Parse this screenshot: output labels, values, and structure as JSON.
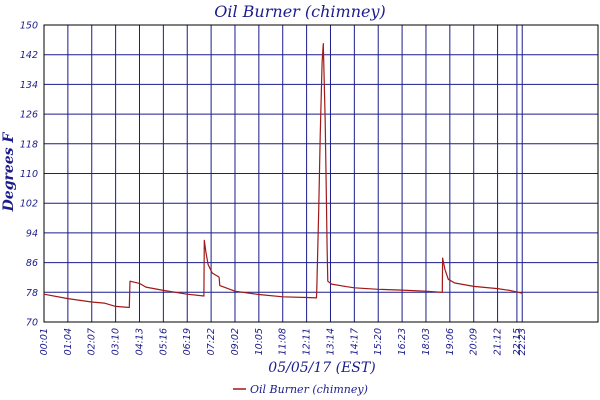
{
  "chart_data": {
    "type": "line",
    "title": "Oil Burner (chimney)",
    "xlabel": "05/05/17 (EST)",
    "ylabel": "Degrees F",
    "ylim": [
      70,
      150
    ],
    "y_ticks": [
      70,
      78,
      86,
      94,
      102,
      110,
      118,
      126,
      134,
      142,
      150
    ],
    "x_range_minutes": [
      1,
      1463
    ],
    "x_ticks": [
      {
        "label": "00:01",
        "min": 1
      },
      {
        "label": "01:04",
        "min": 64
      },
      {
        "label": "02:07",
        "min": 127
      },
      {
        "label": "03:10",
        "min": 190
      },
      {
        "label": "04:13",
        "min": 253
      },
      {
        "label": "05:16",
        "min": 316
      },
      {
        "label": "06:19",
        "min": 379
      },
      {
        "label": "07:22",
        "min": 442
      },
      {
        "label": "09:02",
        "min": 505
      },
      {
        "label": "10:05",
        "min": 568
      },
      {
        "label": "11:08",
        "min": 631
      },
      {
        "label": "12:11",
        "min": 694
      },
      {
        "label": "13:14",
        "min": 757
      },
      {
        "label": "14:17",
        "min": 820
      },
      {
        "label": "15:20",
        "min": 883
      },
      {
        "label": "16:23",
        "min": 946
      },
      {
        "label": "18:03",
        "min": 1009
      },
      {
        "label": "19:06",
        "min": 1072
      },
      {
        "label": "20:09",
        "min": 1135
      },
      {
        "label": "21:12",
        "min": 1198
      },
      {
        "label": "22:15",
        "min": 1249
      },
      {
        "label": "22:23",
        "min": 1263
      }
    ],
    "grid": true,
    "legend": "bottom-center",
    "series": [
      {
        "name": "Oil Burner (chimney)",
        "color": "#a01818",
        "points": [
          [
            1,
            77.5
          ],
          [
            64,
            76.3
          ],
          [
            127,
            75.4
          ],
          [
            160,
            75.1
          ],
          [
            190,
            74.2
          ],
          [
            226,
            73.9
          ],
          [
            228,
            81.0
          ],
          [
            253,
            80.4
          ],
          [
            270,
            79.4
          ],
          [
            316,
            78.5
          ],
          [
            379,
            77.5
          ],
          [
            423,
            77.0
          ],
          [
            424,
            92.0
          ],
          [
            428,
            89.0
          ],
          [
            434,
            85.5
          ],
          [
            445,
            83.2
          ],
          [
            463,
            82.1
          ],
          [
            465,
            79.8
          ],
          [
            505,
            78.3
          ],
          [
            568,
            77.4
          ],
          [
            631,
            76.8
          ],
          [
            694,
            76.6
          ],
          [
            720,
            76.5
          ],
          [
            721,
            79.0
          ],
          [
            726,
            100.0
          ],
          [
            730,
            120.0
          ],
          [
            735,
            140.0
          ],
          [
            738,
            145.0
          ],
          [
            743,
            124.0
          ],
          [
            746,
            105.0
          ],
          [
            748,
            90.0
          ],
          [
            750,
            81.0
          ],
          [
            760,
            80.2
          ],
          [
            800,
            79.5
          ],
          [
            820,
            79.2
          ],
          [
            883,
            78.8
          ],
          [
            946,
            78.6
          ],
          [
            1009,
            78.3
          ],
          [
            1052,
            78.0
          ],
          [
            1053,
            87.2
          ],
          [
            1059,
            84.2
          ],
          [
            1068,
            81.5
          ],
          [
            1085,
            80.5
          ],
          [
            1135,
            79.6
          ],
          [
            1198,
            79.0
          ],
          [
            1230,
            78.5
          ],
          [
            1258,
            77.9
          ],
          [
            1263,
            77.7
          ]
        ]
      }
    ]
  }
}
